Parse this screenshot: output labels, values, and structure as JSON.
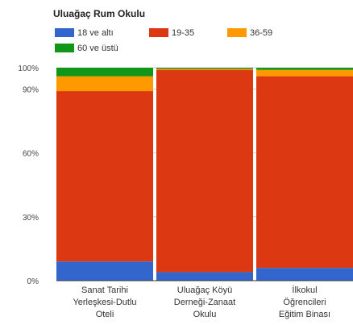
{
  "chart_data": {
    "type": "bar",
    "stacked": true,
    "normalized": true,
    "title": "Uluağaç Rum Okulu",
    "categories": [
      [
        "Sanat Tarihi",
        "Yerleşkesi-Dutlu",
        "Oteli"
      ],
      [
        "Uluağaç Köyü",
        "Derneği-Zanaat",
        "Okulu"
      ],
      [
        "İlkokul",
        "Öğrencileri",
        "Eğitim Binası"
      ]
    ],
    "series": [
      {
        "name": "18 ve altı",
        "color": "#3366cc",
        "values": [
          9,
          4,
          6
        ]
      },
      {
        "name": "19-35",
        "color": "#dc3912",
        "values": [
          80,
          95,
          90
        ]
      },
      {
        "name": "36-59",
        "color": "#ff9900",
        "values": [
          7,
          0.5,
          3
        ]
      },
      {
        "name": "60 ve üstü",
        "color": "#109618",
        "values": [
          4,
          0.5,
          1
        ]
      }
    ],
    "yticks": [
      "0%",
      "30%",
      "60%",
      "90%",
      "100%"
    ],
    "ylim": [
      0,
      100
    ],
    "legend_position": "top",
    "grid": true
  }
}
